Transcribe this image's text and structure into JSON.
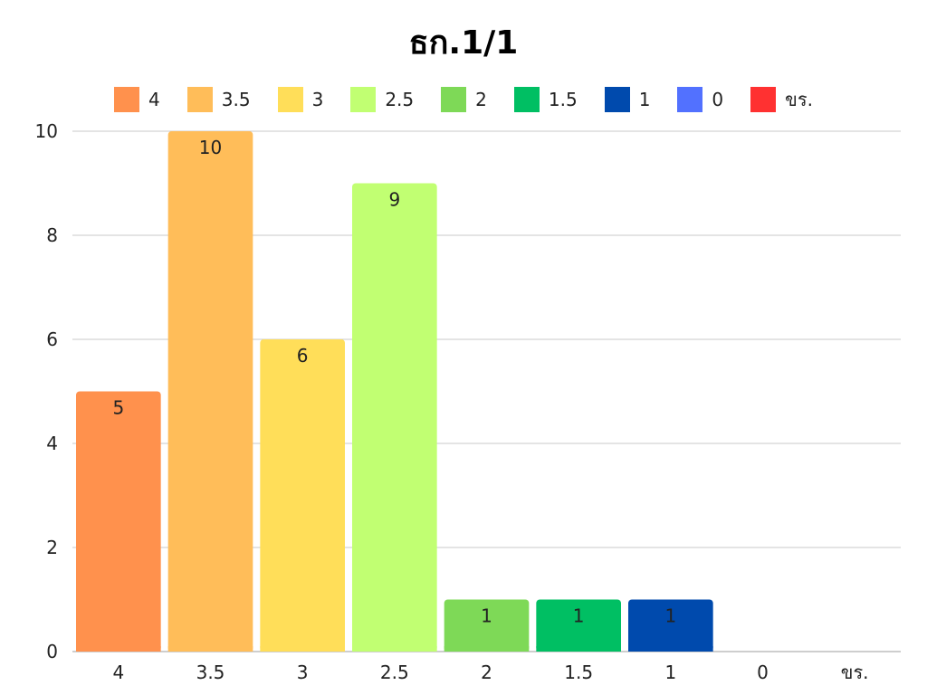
{
  "chart_data": {
    "type": "bar",
    "title": "ธก.1/1",
    "categories": [
      "4",
      "3.5",
      "3",
      "2.5",
      "2",
      "1.5",
      "1",
      "0",
      "ขร."
    ],
    "values": [
      5,
      10,
      6,
      9,
      1,
      1,
      1,
      0,
      0
    ],
    "colors": [
      "#ff914d",
      "#ffbd59",
      "#ffde59",
      "#c1ff72",
      "#7ed957",
      "#00bf63",
      "#004aad",
      "#5271ff",
      "#ff3131"
    ],
    "ylim": [
      0,
      10
    ],
    "yticks": [
      "0",
      "2",
      "4",
      "6",
      "8",
      "10"
    ],
    "grid": true,
    "legend": "top",
    "data_labels": true
  }
}
